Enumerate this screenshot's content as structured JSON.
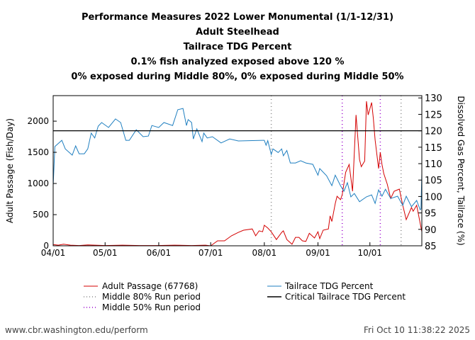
{
  "chart_data": {
    "type": "line",
    "title_lines": [
      "Performance Measures 2022 Lower Monumental (1/1-12/31)",
      "Adult Steelhead",
      "Tailrace TDG Percent",
      "0.1% fish analyzed exposed above 120 %",
      "0% exposed during Middle 80%, 0% exposed during Middle 50%"
    ],
    "ylabel": "Adult Passage (Fish/Day)",
    "y2label": "Dissolved Gas Percent, Tailrace (%)",
    "xlabel": "",
    "x_unit": "days since 04/01",
    "xlim": [
      0,
      213
    ],
    "ylim": [
      0,
      2410
    ],
    "y2lim": [
      85,
      130.7
    ],
    "x_ticks": [
      {
        "label": "04/01",
        "day": 0
      },
      {
        "label": "05/01",
        "day": 30
      },
      {
        "label": "06/01",
        "day": 61
      },
      {
        "label": "07/01",
        "day": 91
      },
      {
        "label": "08/01",
        "day": 122
      },
      {
        "label": "09/01",
        "day": 153
      },
      {
        "label": "10/01",
        "day": 183
      }
    ],
    "y_ticks": [
      0,
      500,
      1000,
      1500,
      2000
    ],
    "y2_ticks": [
      85,
      90,
      95,
      100,
      105,
      110,
      115,
      120,
      125,
      130
    ],
    "grid": false,
    "series": [
      {
        "name": "Adult Passage (67768)",
        "axis": "left",
        "color": "#d40000",
        "x": [
          0,
          3,
          6,
          10,
          15,
          20,
          30,
          40,
          50,
          60,
          70,
          80,
          88,
          91,
          95,
          99,
          103,
          107,
          110,
          115,
          117,
          119,
          121,
          122,
          124,
          126,
          129,
          132,
          133,
          135,
          138,
          140,
          142,
          144,
          146,
          148,
          151,
          153,
          154,
          156,
          159,
          160,
          161,
          163,
          164,
          166,
          167,
          169,
          171,
          173,
          175,
          177,
          178,
          180,
          181,
          182,
          184,
          185,
          186,
          188,
          189,
          190,
          191,
          193,
          195,
          197,
          200,
          202,
          204,
          207,
          208,
          210,
          213
        ],
        "y": [
          20,
          10,
          25,
          10,
          5,
          15,
          5,
          10,
          5,
          5,
          10,
          5,
          10,
          0,
          80,
          80,
          160,
          215,
          250,
          270,
          160,
          240,
          225,
          330,
          285,
          225,
          100,
          215,
          240,
          100,
          25,
          135,
          135,
          80,
          70,
          200,
          125,
          225,
          115,
          250,
          270,
          480,
          390,
          680,
          795,
          740,
          820,
          1180,
          1305,
          875,
          2100,
          1385,
          1270,
          1360,
          2320,
          2100,
          2300,
          2045,
          1700,
          1240,
          1500,
          1305,
          1160,
          990,
          760,
          875,
          910,
          650,
          420,
          615,
          555,
          650,
          225
        ]
      },
      {
        "name": "Tailrace TDG Percent",
        "axis": "right",
        "color": "#1f7fc0",
        "x": [
          0,
          1,
          5,
          7,
          11,
          13,
          15,
          18,
          20,
          22,
          24,
          26,
          28,
          32,
          36,
          39,
          42,
          44,
          48,
          52,
          55,
          57,
          61,
          64,
          69,
          72,
          75,
          77,
          78,
          80,
          81,
          83,
          86,
          87,
          89,
          92,
          97,
          102,
          107,
          121,
          122,
          123,
          124,
          126,
          127,
          130,
          132,
          133,
          135,
          137,
          140,
          143,
          146,
          150,
          153,
          154,
          158,
          161,
          163,
          166,
          168,
          170,
          172,
          174,
          177,
          181,
          184,
          186,
          188,
          190,
          192,
          195,
          199,
          202,
          204,
          207,
          210,
          212,
          212.5,
          213
        ],
        "y": [
          103.3,
          115.2,
          117.1,
          114.5,
          112.6,
          115.4,
          113,
          113,
          114.5,
          119.3,
          117.8,
          121.4,
          122.5,
          121,
          123.6,
          122.5,
          117.1,
          117.1,
          120.3,
          118.2,
          118.4,
          121.6,
          121,
          122.5,
          121.6,
          126.4,
          126.8,
          121.6,
          123.4,
          122.5,
          117.5,
          120.6,
          116.7,
          119.3,
          117.8,
          118.2,
          116.3,
          117.5,
          116.9,
          117.1,
          117.1,
          115.6,
          117,
          112.8,
          114.5,
          113.4,
          114.5,
          112.4,
          114,
          110.2,
          110.2,
          110.9,
          110.2,
          109.8,
          106.5,
          108.5,
          106.3,
          103.3,
          106.5,
          103.3,
          101.6,
          104.2,
          99.9,
          100.9,
          98.4,
          99.9,
          100.5,
          97.9,
          102,
          100.1,
          102.2,
          99.4,
          100.1,
          97.3,
          100.1,
          96.9,
          98.8,
          96,
          96.2,
          107
        ]
      },
      {
        "name": "Critical Tailrace TDG Percent",
        "axis": "right",
        "color": "#000000",
        "value": 120
      }
    ],
    "vertical_markers": [
      {
        "name": "Middle 80% Run period",
        "color": "#888888",
        "days": [
          126,
          201
        ]
      },
      {
        "name": "Middle 50% Run period",
        "color": "#9900cc",
        "days": [
          167,
          189
        ]
      }
    ],
    "legend": {
      "placement": "bottom",
      "entries": [
        "Adult Passage (67768)",
        "Tailrace TDG Percent",
        "Middle 80% Run period",
        "Critical Tailrace TDG Percent",
        "Middle 50% Run period"
      ]
    }
  },
  "footer": {
    "url": "www.cbr.washington.edu/perform",
    "timestamp": "Fri Oct 10 11:38:22 2025"
  }
}
